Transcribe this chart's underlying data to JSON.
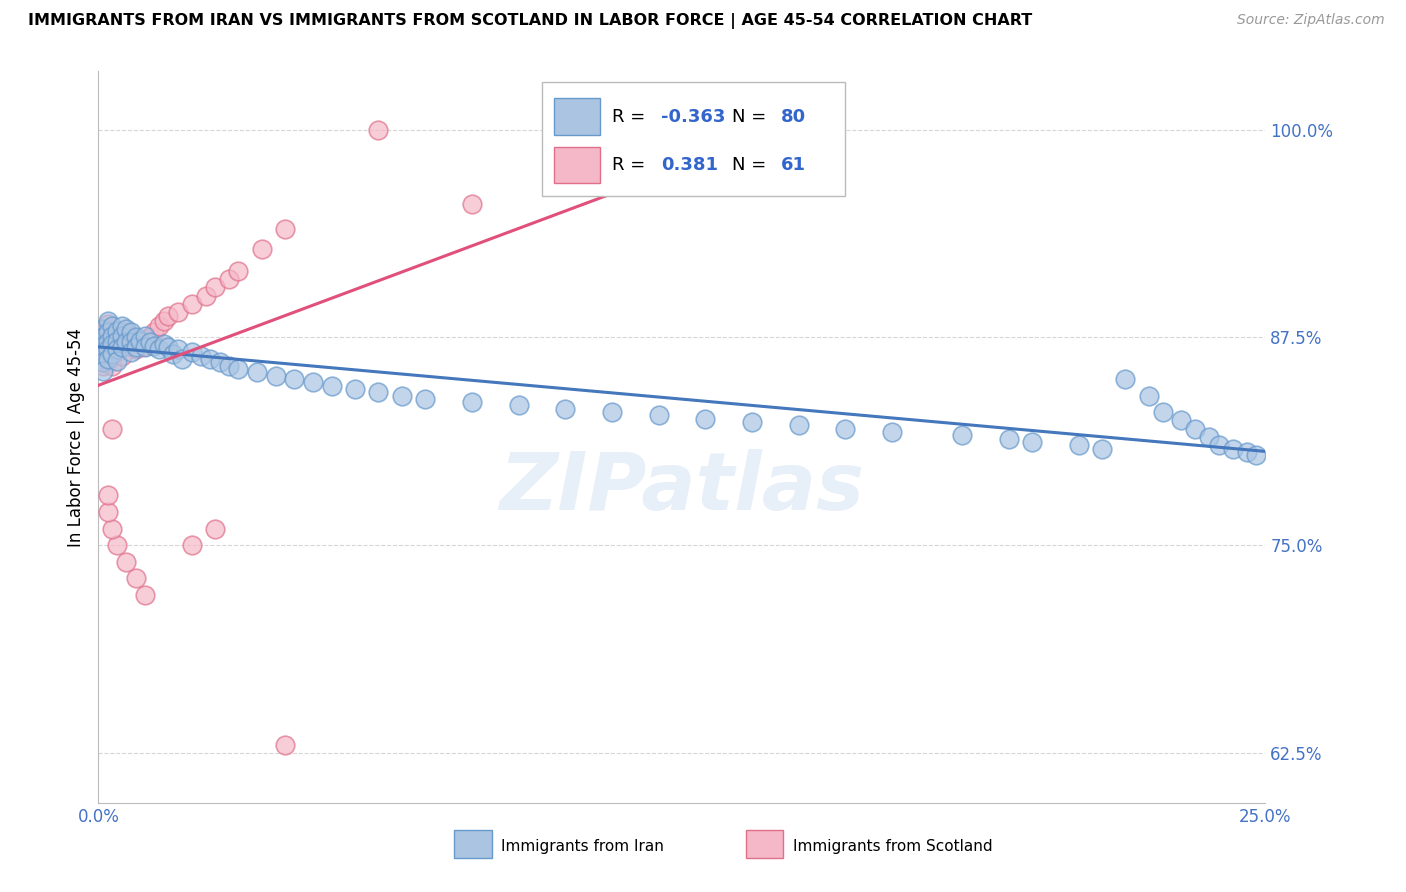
{
  "title": "IMMIGRANTS FROM IRAN VS IMMIGRANTS FROM SCOTLAND IN LABOR FORCE | AGE 45-54 CORRELATION CHART",
  "source": "Source: ZipAtlas.com",
  "ylabel": "In Labor Force | Age 45-54",
  "xlim": [
    0.0,
    0.25
  ],
  "ylim": [
    0.595,
    1.035
  ],
  "yticks": [
    0.625,
    0.75,
    0.875,
    1.0
  ],
  "ytick_labels": [
    "62.5%",
    "75.0%",
    "87.5%",
    "100.0%"
  ],
  "xticks": [
    0.0,
    0.05,
    0.1,
    0.15,
    0.2,
    0.25
  ],
  "iran_R": -0.363,
  "iran_N": 80,
  "scotland_R": 0.381,
  "scotland_N": 61,
  "iran_color": "#aac4e2",
  "iran_edge_color": "#6699cc",
  "scotland_color": "#f5b8c8",
  "scotland_edge_color": "#e0708a",
  "iran_line_color": "#4477bb",
  "scotland_line_color": "#e0507a",
  "watermark": "ZIPatlas",
  "legend_iran_label": "Immigrants from Iran",
  "legend_scotland_label": "Immigrants from Scotland",
  "iran_x": [
    0.001,
    0.001,
    0.001,
    0.001,
    0.001,
    0.001,
    0.002,
    0.002,
    0.002,
    0.002,
    0.002,
    0.003,
    0.003,
    0.003,
    0.003,
    0.004,
    0.004,
    0.004,
    0.004,
    0.005,
    0.005,
    0.005,
    0.006,
    0.006,
    0.007,
    0.007,
    0.007,
    0.008,
    0.008,
    0.009,
    0.01,
    0.01,
    0.011,
    0.012,
    0.013,
    0.014,
    0.015,
    0.016,
    0.017,
    0.018,
    0.02,
    0.022,
    0.024,
    0.026,
    0.028,
    0.03,
    0.034,
    0.038,
    0.042,
    0.046,
    0.05,
    0.055,
    0.06,
    0.065,
    0.07,
    0.08,
    0.09,
    0.1,
    0.11,
    0.12,
    0.13,
    0.14,
    0.15,
    0.16,
    0.17,
    0.185,
    0.195,
    0.2,
    0.21,
    0.215,
    0.22,
    0.225,
    0.228,
    0.232,
    0.235,
    0.238,
    0.24,
    0.243,
    0.246,
    0.248
  ],
  "iran_y": [
    0.88,
    0.875,
    0.87,
    0.865,
    0.86,
    0.855,
    0.885,
    0.878,
    0.872,
    0.868,
    0.862,
    0.882,
    0.876,
    0.871,
    0.865,
    0.879,
    0.873,
    0.868,
    0.861,
    0.882,
    0.876,
    0.869,
    0.88,
    0.872,
    0.878,
    0.872,
    0.866,
    0.875,
    0.869,
    0.873,
    0.876,
    0.869,
    0.872,
    0.87,
    0.868,
    0.871,
    0.869,
    0.865,
    0.868,
    0.862,
    0.866,
    0.864,
    0.862,
    0.86,
    0.858,
    0.856,
    0.854,
    0.852,
    0.85,
    0.848,
    0.846,
    0.844,
    0.842,
    0.84,
    0.838,
    0.836,
    0.834,
    0.832,
    0.83,
    0.828,
    0.826,
    0.824,
    0.822,
    0.82,
    0.818,
    0.816,
    0.814,
    0.812,
    0.81,
    0.808,
    0.85,
    0.84,
    0.83,
    0.825,
    0.82,
    0.815,
    0.81,
    0.808,
    0.806,
    0.804
  ],
  "scotland_x": [
    0.001,
    0.001,
    0.001,
    0.001,
    0.001,
    0.001,
    0.001,
    0.001,
    0.001,
    0.002,
    0.002,
    0.002,
    0.002,
    0.002,
    0.002,
    0.002,
    0.003,
    0.003,
    0.003,
    0.003,
    0.003,
    0.004,
    0.004,
    0.004,
    0.005,
    0.005,
    0.005,
    0.006,
    0.006,
    0.007,
    0.007,
    0.008,
    0.008,
    0.009,
    0.01,
    0.011,
    0.012,
    0.013,
    0.014,
    0.015,
    0.017,
    0.02,
    0.023,
    0.025,
    0.028,
    0.03,
    0.035,
    0.04,
    0.06,
    0.08,
    0.02,
    0.025,
    0.01,
    0.008,
    0.006,
    0.004,
    0.003,
    0.002,
    0.002,
    0.003,
    0.04
  ],
  "scotland_y": [
    0.878,
    0.873,
    0.868,
    0.863,
    0.858,
    0.875,
    0.87,
    0.865,
    0.86,
    0.88,
    0.875,
    0.87,
    0.865,
    0.86,
    0.883,
    0.877,
    0.879,
    0.874,
    0.869,
    0.864,
    0.858,
    0.876,
    0.871,
    0.866,
    0.874,
    0.869,
    0.864,
    0.878,
    0.872,
    0.876,
    0.87,
    0.874,
    0.868,
    0.872,
    0.87,
    0.875,
    0.878,
    0.882,
    0.885,
    0.888,
    0.89,
    0.895,
    0.9,
    0.905,
    0.91,
    0.915,
    0.928,
    0.94,
    1.0,
    0.955,
    0.75,
    0.76,
    0.72,
    0.73,
    0.74,
    0.75,
    0.76,
    0.77,
    0.78,
    0.82,
    0.63
  ]
}
